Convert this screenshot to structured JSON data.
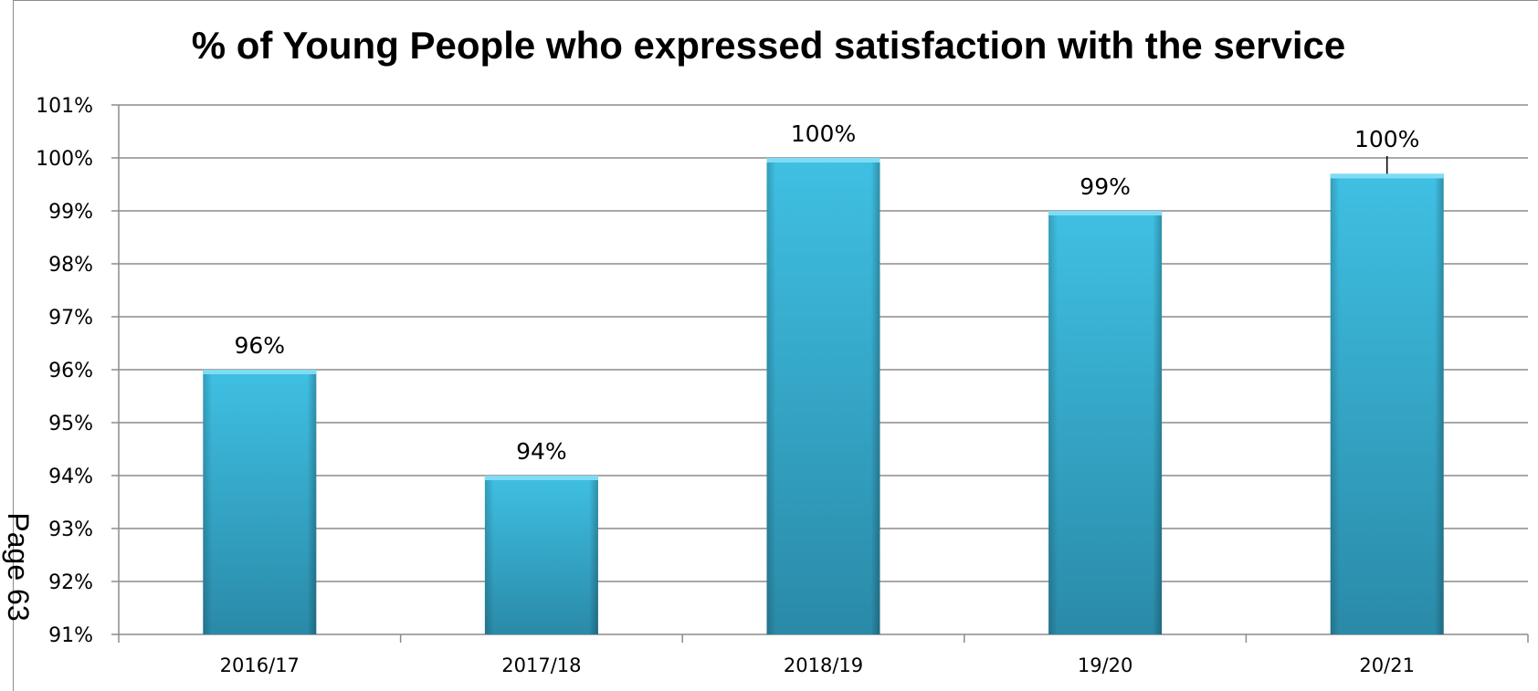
{
  "chart_data": {
    "type": "bar",
    "title": "% of Young People who expressed satisfaction with the service",
    "categories": [
      "2016/17",
      "2017/18",
      "2018/19",
      "19/20",
      "20/21"
    ],
    "values": [
      96,
      94,
      100,
      99,
      99.7
    ],
    "data_labels": [
      "96%",
      "94%",
      "100%",
      "99%",
      "100%"
    ],
    "xlabel": "",
    "ylabel": "",
    "ylim": [
      91,
      101
    ],
    "yticks": [
      91,
      92,
      93,
      94,
      95,
      96,
      97,
      98,
      99,
      100,
      101
    ],
    "ytick_labels": [
      "91%",
      "92%",
      "93%",
      "94%",
      "95%",
      "96%",
      "97%",
      "98%",
      "99%",
      "100%",
      "101%"
    ],
    "grid": true,
    "legend": "none",
    "bar_color": "#38b3d6",
    "bar_color_dark": "#2a8aa8",
    "bar_color_light": "#6fd2ef",
    "grid_color": "#8c8c8c"
  },
  "page_stamp": "Page 63"
}
